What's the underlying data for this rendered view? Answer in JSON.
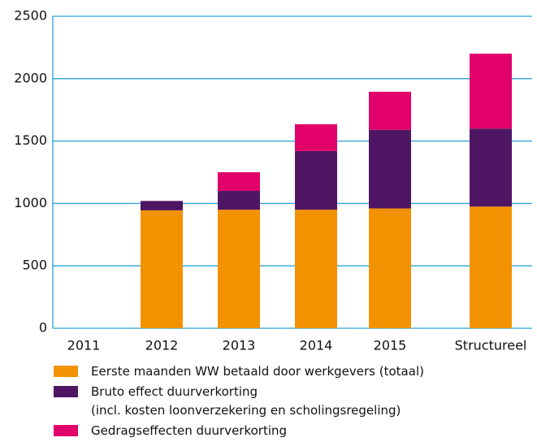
{
  "chart_data": {
    "type": "bar_stacked",
    "categories": [
      "2011",
      "2012",
      "2013",
      "2014",
      "2015",
      "Structureel"
    ],
    "series": [
      {
        "name": "Eerste maanden WW betaald door werkgevers (totaal)",
        "color": "#f39200",
        "values": [
          0,
          945,
          950,
          950,
          960,
          975
        ]
      },
      {
        "name": "Bruto effect duurverkorting\n(incl. kosten loonverzekering en scholingsregeling)",
        "color": "#4f1664",
        "values": [
          0,
          75,
          150,
          470,
          630,
          625
        ]
      },
      {
        "name": "Gedragseffecten duurverkorting",
        "color": "#e2006a",
        "values": [
          0,
          0,
          150,
          215,
          305,
          600
        ]
      }
    ],
    "ylim": [
      0,
      2500
    ],
    "yticks": [
      0,
      500,
      1000,
      1500,
      2000,
      2500
    ],
    "grid": true
  }
}
